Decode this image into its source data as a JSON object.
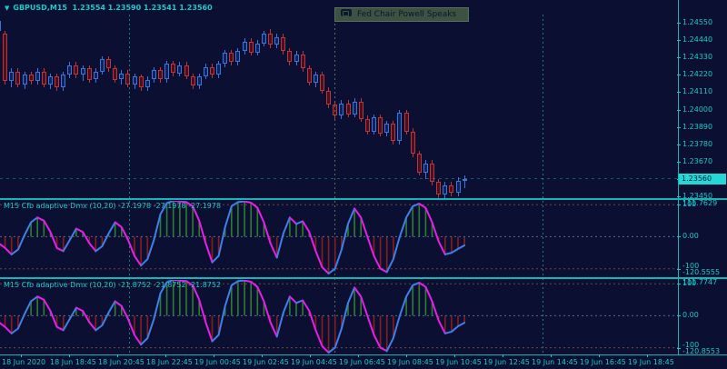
{
  "window": {
    "symbol_marker": "▼",
    "title": "GBPUSD,M15",
    "ohlc": "1.23554 1.23590 1.23541 1.23560"
  },
  "news": {
    "label": "Fed Chair Powell Speaks"
  },
  "price_axis": {
    "labels": [
      "1.24550",
      "1.24440",
      "1.24330",
      "1.24220",
      "1.24110",
      "1.24000",
      "1.23890",
      "1.23780",
      "1.23670",
      "1.23560",
      "1.23450"
    ],
    "current": "1.23560"
  },
  "time_axis": {
    "labels": [
      "18 Jun 2020",
      "18 Jun 18:45",
      "18 Jun 20:45",
      "18 Jun 22:45",
      "19 Jun 00:45",
      "19 Jun 02:45",
      "19 Jun 04:45",
      "19 Jun 06:45",
      "19 Jun 08:45",
      "19 Jun 10:45",
      "19 Jun 12:45",
      "19 Jun 14:45",
      "19 Jun 16:45",
      "19 Jun 18:45"
    ]
  },
  "panels": [
    {
      "title": "M15 Cfb adaptive Dmx (10,20) -27.1978 -27.1978 -27.1978",
      "max_label": "111.7629",
      "min_label": "-120.5555",
      "level_high": "100",
      "level_zero": "0.00",
      "level_low": "-100"
    },
    {
      "title": "M15 Cfb adaptive Dmx (10,20) -21.8752 -21.8752 -21.8752",
      "max_label": "111.7747",
      "min_label": "-120.8553",
      "level_high": "100",
      "level_zero": "0.00",
      "level_low": "-100"
    }
  ],
  "colors": {
    "background": "#0b1033",
    "axis_text": "#1cc9c9",
    "separator": "#0fb7b7",
    "bull_border": "#3b74dd",
    "bull_fill": "#10225a",
    "bear_border": "#bf3434",
    "bear_fill": "#451122",
    "osc_rising": "#3f7fe8",
    "osc_falling": "#e81ee8",
    "hist_pos": "#2e7d2e",
    "hist_neg": "#8b1c1c",
    "level_line": "#7a4040",
    "zero_line": "#5a6a8a",
    "price_badge_bg": "#25d8d8",
    "price_badge_text": "#06182e",
    "news_bg": "#3e5244",
    "news_text": "#0b1626",
    "vline_session": "#1f8f8f",
    "vline_news": "#6b7d66"
  },
  "chart_data": [
    {
      "type": "candlestick",
      "title": "GBPUSD M15",
      "ylim": [
        1.2345,
        1.2455
      ],
      "ohlc": [
        [
          1.245,
          1.2458,
          1.2447,
          1.2456
        ],
        [
          1.2448,
          1.245,
          1.2416,
          1.2418
        ],
        [
          1.2418,
          1.2426,
          1.2414,
          1.2424
        ],
        [
          1.2424,
          1.2426,
          1.2414,
          1.2416
        ],
        [
          1.2416,
          1.2424,
          1.2413,
          1.2422
        ],
        [
          1.2422,
          1.2424,
          1.2416,
          1.2418
        ],
        [
          1.2418,
          1.2426,
          1.2416,
          1.2424
        ],
        [
          1.2424,
          1.2426,
          1.2414,
          1.2416
        ],
        [
          1.2416,
          1.2423,
          1.2413,
          1.2421
        ],
        [
          1.2421,
          1.2423,
          1.2412,
          1.2414
        ],
        [
          1.2414,
          1.2424,
          1.2412,
          1.2422
        ],
        [
          1.2422,
          1.243,
          1.242,
          1.2428
        ],
        [
          1.2428,
          1.243,
          1.242,
          1.2422
        ],
        [
          1.2422,
          1.2428,
          1.2418,
          1.2426
        ],
        [
          1.2426,
          1.2428,
          1.2417,
          1.2419
        ],
        [
          1.2419,
          1.2426,
          1.2417,
          1.2424
        ],
        [
          1.2424,
          1.2434,
          1.2422,
          1.2432
        ],
        [
          1.2432,
          1.2434,
          1.2424,
          1.2426
        ],
        [
          1.2426,
          1.2428,
          1.2417,
          1.2419
        ],
        [
          1.2419,
          1.2425,
          1.2416,
          1.2423
        ],
        [
          1.2423,
          1.2425,
          1.2414,
          1.2416
        ],
        [
          1.2416,
          1.2423,
          1.2413,
          1.2421
        ],
        [
          1.2421,
          1.2422,
          1.2412,
          1.2414
        ],
        [
          1.2414,
          1.2421,
          1.2412,
          1.2419
        ],
        [
          1.2419,
          1.2427,
          1.2417,
          1.2425
        ],
        [
          1.2425,
          1.2427,
          1.2417,
          1.2419
        ],
        [
          1.2419,
          1.2431,
          1.2417,
          1.2429
        ],
        [
          1.2429,
          1.2431,
          1.2421,
          1.2423
        ],
        [
          1.2423,
          1.243,
          1.2421,
          1.2428
        ],
        [
          1.2428,
          1.243,
          1.2419,
          1.2421
        ],
        [
          1.2421,
          1.2423,
          1.2413,
          1.2415
        ],
        [
          1.2415,
          1.2423,
          1.2413,
          1.2421
        ],
        [
          1.2421,
          1.2429,
          1.2419,
          1.2427
        ],
        [
          1.2427,
          1.2429,
          1.242,
          1.2422
        ],
        [
          1.2422,
          1.2431,
          1.242,
          1.2429
        ],
        [
          1.2429,
          1.2438,
          1.2427,
          1.2436
        ],
        [
          1.2436,
          1.2438,
          1.2428,
          1.243
        ],
        [
          1.243,
          1.2439,
          1.2428,
          1.2437
        ],
        [
          1.2437,
          1.2445,
          1.2435,
          1.2443
        ],
        [
          1.2443,
          1.2445,
          1.2434,
          1.2436
        ],
        [
          1.2436,
          1.2444,
          1.2434,
          1.2442
        ],
        [
          1.2442,
          1.245,
          1.244,
          1.2448
        ],
        [
          1.2448,
          1.2451,
          1.2439,
          1.2441
        ],
        [
          1.2441,
          1.2448,
          1.2439,
          1.2446
        ],
        [
          1.2446,
          1.2448,
          1.2435,
          1.2437
        ],
        [
          1.2437,
          1.2439,
          1.2428,
          1.243
        ],
        [
          1.243,
          1.2437,
          1.2428,
          1.2435
        ],
        [
          1.2435,
          1.2437,
          1.2424,
          1.2426
        ],
        [
          1.2426,
          1.2428,
          1.2415,
          1.2417
        ],
        [
          1.2417,
          1.2424,
          1.2414,
          1.2422
        ],
        [
          1.2422,
          1.2424,
          1.241,
          1.2412
        ],
        [
          1.2412,
          1.2414,
          1.2401,
          1.2403
        ],
        [
          1.2403,
          1.2405,
          1.2394,
          1.2396
        ],
        [
          1.2396,
          1.2406,
          1.2394,
          1.2404
        ],
        [
          1.2404,
          1.2406,
          1.2395,
          1.2397
        ],
        [
          1.2397,
          1.2407,
          1.2395,
          1.2405
        ],
        [
          1.2405,
          1.2407,
          1.2392,
          1.2394
        ],
        [
          1.2394,
          1.2396,
          1.2384,
          1.2386
        ],
        [
          1.2386,
          1.2397,
          1.2384,
          1.2395
        ],
        [
          1.2395,
          1.2397,
          1.2383,
          1.2385
        ],
        [
          1.2385,
          1.2393,
          1.2383,
          1.2391
        ],
        [
          1.2391,
          1.2393,
          1.2378,
          1.238
        ],
        [
          1.238,
          1.24,
          1.2378,
          1.2398
        ],
        [
          1.2398,
          1.24,
          1.2384,
          1.2386
        ],
        [
          1.2386,
          1.2388,
          1.237,
          1.2372
        ],
        [
          1.2372,
          1.2374,
          1.2358,
          1.236
        ],
        [
          1.236,
          1.2368,
          1.2356,
          1.2366
        ],
        [
          1.2366,
          1.2368,
          1.2352,
          1.2354
        ],
        [
          1.2354,
          1.2356,
          1.2344,
          1.2346
        ],
        [
          1.2346,
          1.2354,
          1.2344,
          1.2352
        ],
        [
          1.2352,
          1.2354,
          1.2345,
          1.2347
        ],
        [
          1.2347,
          1.2357,
          1.2345,
          1.2355
        ],
        [
          1.2355,
          1.2358,
          1.235,
          1.2356
        ]
      ]
    },
    {
      "type": "area",
      "title": "M15 Cfb adaptive Dmx (10,20)",
      "ylim": [
        -120.5555,
        111.7629
      ],
      "levels": [
        100,
        0,
        -100
      ],
      "last": -27.1978,
      "values": [
        -20,
        -35,
        -55,
        -40,
        5,
        45,
        60,
        50,
        15,
        -35,
        -45,
        -10,
        25,
        15,
        -20,
        -45,
        -30,
        10,
        45,
        30,
        -10,
        -60,
        -90,
        -70,
        -10,
        70,
        105,
        112,
        110,
        108,
        95,
        50,
        -20,
        -80,
        -60,
        30,
        95,
        108,
        110,
        106,
        90,
        45,
        -20,
        -65,
        10,
        60,
        40,
        48,
        15,
        -45,
        -95,
        -115,
        -100,
        -40,
        40,
        88,
        60,
        0,
        -60,
        -100,
        -110,
        -70,
        0,
        60,
        95,
        103,
        90,
        45,
        -15,
        -55,
        -50,
        -38,
        -27.2
      ]
    },
    {
      "type": "area",
      "title": "M15 Cfb adaptive Dmx (10,20)",
      "ylim": [
        -120.8553,
        111.7747
      ],
      "levels": [
        100,
        0,
        -100
      ],
      "last": -21.8752,
      "values": [
        -20,
        -35,
        -55,
        -40,
        5,
        45,
        60,
        50,
        15,
        -35,
        -45,
        -10,
        25,
        15,
        -20,
        -45,
        -30,
        10,
        45,
        30,
        -10,
        -60,
        -90,
        -70,
        -10,
        70,
        105,
        112,
        110,
        108,
        95,
        50,
        -20,
        -80,
        -60,
        30,
        95,
        108,
        110,
        106,
        90,
        45,
        -20,
        -65,
        10,
        60,
        40,
        48,
        15,
        -45,
        -95,
        -115,
        -100,
        -40,
        40,
        88,
        60,
        0,
        -60,
        -100,
        -110,
        -70,
        0,
        60,
        95,
        103,
        90,
        45,
        -15,
        -55,
        -50,
        -33,
        -21.9
      ]
    }
  ]
}
